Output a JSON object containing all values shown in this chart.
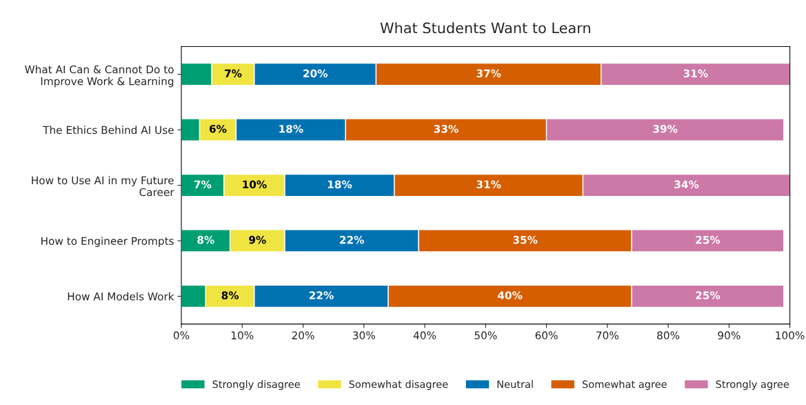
{
  "chart_data": {
    "type": "bar",
    "orientation": "horizontal",
    "stacked": true,
    "title": "What Students Want to Learn",
    "categories": [
      "What AI Can & Cannot Do to\nImprove Work & Learning",
      "The Ethics Behind AI Use",
      "How to Use AI in my Future\nCareer",
      "How to Engineer Prompts",
      "How AI Models Work"
    ],
    "series": [
      {
        "name": "Strongly disagree",
        "color": "#009e73",
        "values": [
          5,
          3,
          7,
          8,
          4
        ],
        "value_labels": [
          null,
          null,
          "7%",
          "8%",
          null
        ]
      },
      {
        "name": "Somewhat disagree",
        "color": "#f0e442",
        "values": [
          7,
          6,
          10,
          9,
          8
        ],
        "value_labels": [
          "7%",
          "6%",
          "10%",
          "9%",
          "8%"
        ]
      },
      {
        "name": "Neutral",
        "color": "#0072b2",
        "values": [
          20,
          18,
          18,
          22,
          22
        ],
        "value_labels": [
          "20%",
          "18%",
          "18%",
          "22%",
          "22%"
        ]
      },
      {
        "name": "Somewhat agree",
        "color": "#d55e00",
        "values": [
          37,
          33,
          31,
          35,
          40
        ],
        "value_labels": [
          "37%",
          "33%",
          "31%",
          "35%",
          "40%"
        ]
      },
      {
        "name": "Strongly agree",
        "color": "#cc79a7",
        "values": [
          31,
          39,
          34,
          25,
          25
        ],
        "value_labels": [
          "31%",
          "39%",
          "34%",
          "25%",
          "25%"
        ]
      }
    ],
    "xlim": [
      0,
      100
    ],
    "xticks": [
      {
        "value": 0,
        "label": "0%"
      },
      {
        "value": 10,
        "label": "10%"
      },
      {
        "value": 20,
        "label": "20%"
      },
      {
        "value": 30,
        "label": "30%"
      },
      {
        "value": 40,
        "label": "40%"
      },
      {
        "value": 50,
        "label": "50%"
      },
      {
        "value": 60,
        "label": "60%"
      },
      {
        "value": 70,
        "label": "70%"
      },
      {
        "value": 80,
        "label": "80%"
      },
      {
        "value": 90,
        "label": "90%"
      },
      {
        "value": 100,
        "label": "100%"
      }
    ],
    "legend": "bottom",
    "grid": false
  }
}
